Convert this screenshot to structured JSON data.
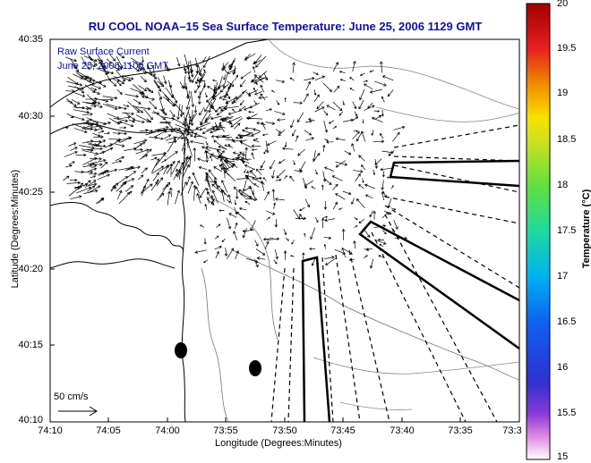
{
  "title": "RU COOL   NOAA–15  Sea Surface Temperature:  June 25, 2006 1129 GMT",
  "legend": {
    "line1": "Raw Surface Current",
    "line2": "June 25, 2006  1100 GMT"
  },
  "scale_label": "50 cm/s",
  "axes": {
    "xlabel": "Longitude (Degrees:Minutes)",
    "ylabel": "Latitude (Degrees:Minutes)",
    "xticks": [
      "74:10",
      "74:05",
      "74:00",
      "73:55",
      "73:50",
      "73:45",
      "73:40",
      "73:35",
      "73:3"
    ],
    "yticks": [
      "40:35",
      "40:30",
      "40:25",
      "40:20",
      "40:15",
      "40:10"
    ]
  },
  "colorbar": {
    "title": "Temperature (°C)",
    "ticks": [
      "20",
      "19.5",
      "19",
      "18.5",
      "18",
      "17.5",
      "17",
      "16.5",
      "16",
      "15.5",
      "15"
    ]
  },
  "colors": {
    "title": "#1010a0",
    "frame": "#000000",
    "vectors": "#000000"
  }
}
